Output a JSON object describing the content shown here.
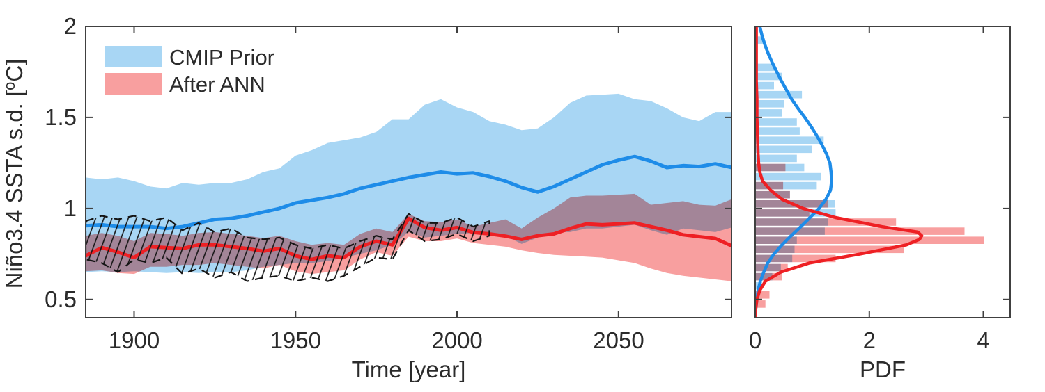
{
  "figure": {
    "description": "Two-panel MATLAB-style figure: Nino3.4 SSTA standard deviation time series with uncertainty bands (left) and corresponding PDF histograms with fitted curves (right)"
  },
  "legend": {
    "items": [
      {
        "label": "CMIP Prior",
        "color": "#a8d6f4"
      },
      {
        "label": "After ANN",
        "color": "#f89f9f"
      }
    ]
  },
  "colors": {
    "blue_line": "#1e8ce8",
    "red_line": "#ee2024",
    "blue_band": "#a8d6f4",
    "red_band": "#f89f9f",
    "axis": "#404040",
    "hatch": "#141414",
    "text": "#2b2b2b"
  },
  "chart_data": [
    {
      "id": "timeseries",
      "type": "area+line",
      "title": "",
      "xlabel": "Time [year]",
      "ylabel": "Niño3.4 SSTA s.d. [°C]",
      "ylabel_parts": {
        "pre": "Niño3.4 SSTA s.d. [",
        "sup": "o",
        "post": "C]"
      },
      "xlim": [
        1885,
        2085
      ],
      "ylim": [
        0.4,
        2
      ],
      "xticks": [
        1900,
        1950,
        2000,
        2050
      ],
      "yticks": [
        0.5,
        1,
        1.5,
        2
      ],
      "xtick_labels": [
        "1900",
        "1950",
        "2000",
        "2050"
      ],
      "ytick_labels": [
        "0.5",
        "1",
        "1.5",
        "2"
      ],
      "grid": false,
      "legend_position": "northwest-inside",
      "years": [
        1885,
        1890,
        1895,
        1900,
        1905,
        1910,
        1915,
        1920,
        1925,
        1930,
        1935,
        1940,
        1945,
        1950,
        1955,
        1960,
        1965,
        1970,
        1975,
        1980,
        1985,
        1990,
        1995,
        2000,
        2005,
        2010,
        2015,
        2020,
        2025,
        2030,
        2035,
        2040,
        2045,
        2050,
        2055,
        2060,
        2065,
        2070,
        2075,
        2080,
        2085
      ],
      "series": [
        {
          "name": "CMIP Prior mean",
          "color": "#1e8ce8",
          "values": [
            0.905,
            0.91,
            0.9,
            0.9,
            0.9,
            0.89,
            0.9,
            0.92,
            0.94,
            0.945,
            0.96,
            0.98,
            1.0,
            1.03,
            1.045,
            1.06,
            1.08,
            1.11,
            1.13,
            1.15,
            1.17,
            1.185,
            1.2,
            1.19,
            1.195,
            1.175,
            1.15,
            1.115,
            1.09,
            1.12,
            1.16,
            1.2,
            1.24,
            1.265,
            1.285,
            1.26,
            1.225,
            1.235,
            1.23,
            1.245,
            1.225
          ]
        },
        {
          "name": "After ANN mean",
          "color": "#ee2024",
          "values": [
            0.74,
            0.785,
            0.76,
            0.73,
            0.79,
            0.785,
            0.78,
            0.8,
            0.8,
            0.79,
            0.78,
            0.765,
            0.78,
            0.74,
            0.72,
            0.74,
            0.73,
            0.79,
            0.82,
            0.8,
            0.945,
            0.895,
            0.88,
            0.895,
            0.868,
            0.86,
            0.848,
            0.83,
            0.85,
            0.86,
            0.89,
            0.915,
            0.91,
            0.915,
            0.92,
            0.9,
            0.88,
            0.855,
            0.845,
            0.835,
            0.795
          ]
        }
      ],
      "bands": [
        {
          "name": "CMIP Prior spread",
          "color": "#a8d6f4",
          "blend": "normal",
          "upper": [
            1.17,
            1.16,
            1.17,
            1.15,
            1.12,
            1.11,
            1.14,
            1.13,
            1.14,
            1.14,
            1.16,
            1.2,
            1.22,
            1.29,
            1.32,
            1.36,
            1.375,
            1.39,
            1.42,
            1.49,
            1.49,
            1.57,
            1.6,
            1.555,
            1.53,
            1.48,
            1.46,
            1.43,
            1.44,
            1.5,
            1.58,
            1.62,
            1.625,
            1.63,
            1.6,
            1.59,
            1.55,
            1.5,
            1.48,
            1.53,
            1.53
          ],
          "lower": [
            0.65,
            0.655,
            0.65,
            0.655,
            0.65,
            0.645,
            0.65,
            0.645,
            0.65,
            0.65,
            0.66,
            0.68,
            0.69,
            0.7,
            0.7,
            0.71,
            0.73,
            0.75,
            0.77,
            0.8,
            0.87,
            0.84,
            0.85,
            0.86,
            0.865,
            0.87,
            0.85,
            0.805,
            0.84,
            0.87,
            0.87,
            0.89,
            0.89,
            0.9,
            0.91,
            0.88,
            0.855,
            0.89,
            0.88,
            0.87,
            0.895
          ]
        },
        {
          "name": "After ANN spread",
          "color": "#f89f9f",
          "blend": "multiply",
          "upper": [
            0.85,
            0.865,
            0.85,
            0.82,
            0.865,
            0.86,
            0.85,
            0.865,
            0.87,
            0.86,
            0.85,
            0.837,
            0.85,
            0.82,
            0.8,
            0.81,
            0.8,
            0.86,
            0.89,
            0.87,
            0.97,
            0.93,
            0.925,
            0.94,
            0.9,
            0.92,
            0.94,
            0.89,
            0.95,
            1.0,
            1.06,
            1.07,
            1.07,
            1.075,
            1.08,
            1.02,
            1.03,
            1.04,
            1.02,
            1.015,
            1.05
          ],
          "lower": [
            0.655,
            0.66,
            0.645,
            0.64,
            0.68,
            0.68,
            0.69,
            0.69,
            0.7,
            0.69,
            0.68,
            0.67,
            0.69,
            0.655,
            0.64,
            0.65,
            0.66,
            0.72,
            0.76,
            0.74,
            0.845,
            0.82,
            0.82,
            0.835,
            0.81,
            0.8,
            0.79,
            0.77,
            0.755,
            0.745,
            0.74,
            0.735,
            0.73,
            0.715,
            0.7,
            0.67,
            0.645,
            0.63,
            0.62,
            0.61,
            0.6
          ]
        }
      ],
      "hatched_band": {
        "style": "black dashed outline with diagonal hatching",
        "years": [
          1885,
          1890,
          1895,
          1900,
          1905,
          1910,
          1915,
          1920,
          1925,
          1930,
          1935,
          1940,
          1945,
          1950,
          1955,
          1960,
          1965,
          1970,
          1975,
          1980,
          1985,
          1990,
          1995,
          2000,
          2005,
          2010
        ],
        "upper": [
          0.93,
          0.96,
          0.94,
          0.96,
          0.93,
          0.95,
          0.88,
          0.92,
          0.87,
          0.89,
          0.84,
          0.83,
          0.84,
          0.8,
          0.78,
          0.8,
          0.78,
          0.82,
          0.85,
          0.83,
          0.97,
          0.92,
          0.92,
          0.95,
          0.9,
          0.93
        ],
        "lower": [
          0.72,
          0.7,
          0.65,
          0.72,
          0.7,
          0.73,
          0.64,
          0.67,
          0.62,
          0.65,
          0.6,
          0.62,
          0.63,
          0.6,
          0.62,
          0.6,
          0.63,
          0.68,
          0.73,
          0.72,
          0.88,
          0.82,
          0.83,
          0.86,
          0.82,
          0.85
        ]
      }
    },
    {
      "id": "pdf",
      "type": "histogram+curve",
      "title": "",
      "xlabel": "PDF",
      "xlim": [
        0,
        4.47
      ],
      "ylim": [
        0.4,
        2
      ],
      "xticks": [
        0,
        2,
        4
      ],
      "xtick_labels": [
        "0",
        "2",
        "4"
      ],
      "grid": false,
      "bin_width": 0.05,
      "bin_centers": [
        0.475,
        0.525,
        0.575,
        0.625,
        0.675,
        0.725,
        0.775,
        0.825,
        0.875,
        0.925,
        0.975,
        1.025,
        1.075,
        1.125,
        1.175,
        1.225,
        1.275,
        1.325,
        1.375,
        1.425,
        1.475,
        1.525,
        1.575,
        1.625,
        1.675,
        1.725,
        1.775,
        1.825,
        1.875,
        1.925
      ],
      "hist": [
        {
          "name": "CMIP Prior",
          "color": "#a8d6f4",
          "blend": "normal",
          "values": [
            0,
            0,
            0.12,
            0.3,
            0.45,
            0.65,
            0.69,
            0.73,
            1.22,
            1.28,
            1.41,
            1.4,
            0.61,
            1.08,
            1.16,
            0.86,
            0.73,
            1.0,
            1.2,
            0.78,
            0.73,
            0.47,
            0.51,
            0.82,
            0.33,
            0.47,
            0.35,
            0,
            0,
            0.16
          ]
        },
        {
          "name": "After ANN",
          "color": "#f89f9f",
          "blend": "multiply",
          "values": [
            0.18,
            0.25,
            0,
            0.47,
            0.57,
            1.41,
            2.61,
            4.01,
            3.67,
            2.47,
            0.95,
            1.28,
            0.61,
            0.49,
            0,
            0.53,
            0,
            0,
            0,
            0,
            0,
            0,
            0,
            0,
            0,
            0,
            0,
            0,
            0,
            0
          ]
        }
      ],
      "curves": [
        {
          "name": "CMIP Prior PDF",
          "color": "#1e8ce8",
          "y": [
            0.4,
            0.45,
            0.5,
            0.55,
            0.6,
            0.65,
            0.7,
            0.75,
            0.8,
            0.85,
            0.9,
            0.95,
            1.0,
            1.05,
            1.1,
            1.15,
            1.2,
            1.25,
            1.3,
            1.35,
            1.4,
            1.45,
            1.5,
            1.55,
            1.6,
            1.65,
            1.7,
            1.75,
            1.8,
            1.85,
            1.9,
            1.95,
            2.0
          ],
          "pdf": [
            0.0,
            0.01,
            0.03,
            0.05,
            0.09,
            0.15,
            0.22,
            0.33,
            0.47,
            0.63,
            0.8,
            0.96,
            1.12,
            1.24,
            1.32,
            1.34,
            1.33,
            1.31,
            1.25,
            1.17,
            1.08,
            0.98,
            0.87,
            0.75,
            0.64,
            0.55,
            0.46,
            0.38,
            0.3,
            0.23,
            0.17,
            0.12,
            0.08
          ]
        },
        {
          "name": "After ANN PDF",
          "color": "#ee2024",
          "y": [
            0.4,
            0.45,
            0.5,
            0.55,
            0.6,
            0.65,
            0.7,
            0.75,
            0.8,
            0.83,
            0.85,
            0.87,
            0.9,
            0.95,
            1.0,
            1.05,
            1.1,
            1.15,
            1.2,
            1.25,
            1.3,
            1.4,
            1.5,
            1.6,
            1.7,
            1.8,
            1.9,
            2.0
          ],
          "pdf": [
            0.0,
            0.01,
            0.03,
            0.08,
            0.18,
            0.45,
            0.95,
            1.85,
            2.65,
            2.88,
            2.92,
            2.85,
            2.22,
            1.41,
            0.84,
            0.47,
            0.27,
            0.13,
            0.08,
            0.06,
            0.05,
            0.04,
            0.03,
            0.03,
            0.02,
            0.02,
            0.02,
            0.02
          ]
        }
      ]
    }
  ]
}
